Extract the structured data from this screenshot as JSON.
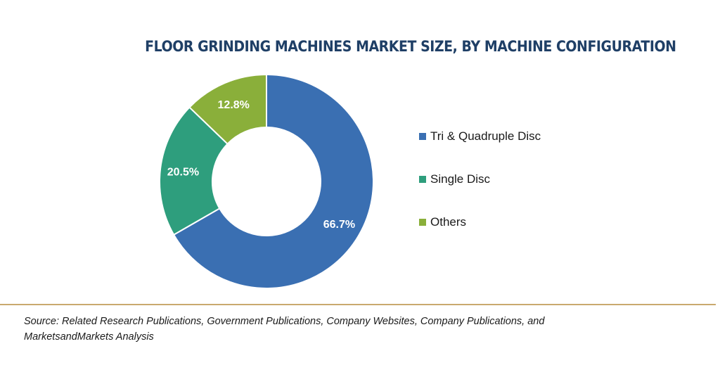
{
  "chart_data": {
    "type": "pie",
    "title": "FLOOR GRINDING MACHINES MARKET SIZE, BY MACHINE CONFIGURATION",
    "donut": true,
    "categories": [
      "Tri & Quadruple Disc",
      "Single Disc",
      "Others"
    ],
    "values": [
      66.7,
      20.5,
      12.8
    ],
    "value_labels": [
      "66.7%",
      "20.5%",
      "12.8%"
    ],
    "colors": [
      "#3a6fb2",
      "#2e9e7d",
      "#8aaf3a"
    ],
    "legend_position": "right"
  },
  "footer": {
    "source_line1": "Source: Related Research Publications, Government Publications, Company Websites, Company Publications, and",
    "source_line2": "MarketsandMarkets Analysis"
  }
}
